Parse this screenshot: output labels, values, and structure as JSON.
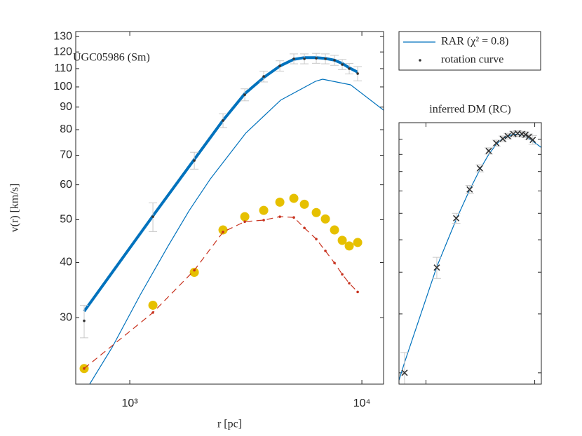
{
  "chart_data": [
    {
      "type": "line",
      "annotation": "UGC05986 (Sm)",
      "xlabel": "r   [pc]",
      "ylabel": "v(r)   [km/s]",
      "xscale": "log",
      "yscale": "log",
      "xlim": [
        585,
        12400
      ],
      "ylim": [
        21.2,
        133.5
      ],
      "xticks": [
        {
          "value": 1000,
          "label": "10³"
        },
        {
          "value": 10000,
          "label": "10⁴"
        }
      ],
      "yticks": [
        30,
        40,
        50,
        60,
        70,
        80,
        90,
        100,
        110,
        120,
        130
      ],
      "legend": "outside-right-top",
      "series": [
        {
          "name": "RAR (χ² = 0.8)",
          "color": "#0072BD",
          "line": "solid",
          "width": 4,
          "marker": "none",
          "x": [
            636,
            1258,
            1897,
            2522,
            3130,
            3776,
            4432,
            5092,
            5653,
            6361,
            6963,
            7622,
            8230,
            8821,
            9592
          ],
          "values": [
            31.0,
            51.0,
            68.5,
            84.0,
            96.5,
            105.0,
            111.5,
            115.5,
            116.5,
            116.5,
            116.0,
            115.0,
            113.0,
            110.5,
            108.0
          ]
        },
        {
          "color": "#0072BD",
          "line": "solid",
          "width": 1.2,
          "marker": "none",
          "x": [
            672,
            840,
            1110,
            1466,
            1806,
            2226,
            3153,
            4465,
            6325,
            6773,
            8945,
            12400
          ],
          "values": [
            21.2,
            25.7,
            33.8,
            43.7,
            52.5,
            61.9,
            78.5,
            93.3,
            103.0,
            104.1,
            101.1,
            88.6
          ]
        },
        {
          "color": "#E6C000",
          "line": "none",
          "marker": "circle",
          "x": [
            636,
            1258,
            1897,
            2522,
            3130,
            3776,
            4432,
            5092,
            5653,
            6361,
            6963,
            7622,
            8230,
            8821,
            9592
          ],
          "values": [
            23.0,
            32.0,
            38.0,
            47.4,
            50.8,
            52.5,
            54.8,
            55.9,
            54.2,
            51.9,
            50.2,
            47.4,
            44.9,
            43.6,
            44.4
          ]
        },
        {
          "color": "#C8321E",
          "line": "dashed",
          "width": 1.2,
          "marker": "smalldot",
          "x": [
            636,
            1258,
            1897,
            2522,
            3130,
            3776,
            4432,
            5092,
            5653,
            6361,
            6963,
            7622,
            8230,
            8821,
            9592
          ],
          "values": [
            23.0,
            30.8,
            38.4,
            46.9,
            49.5,
            49.9,
            50.8,
            50.6,
            47.9,
            45.2,
            42.5,
            39.9,
            37.6,
            35.9,
            34.3
          ]
        },
        {
          "name": "rotation curve",
          "color": "#333333",
          "line": "none",
          "marker": "dot",
          "x": [
            636,
            1258,
            1897,
            2522,
            3130,
            3776,
            4432,
            5092,
            5653,
            6361,
            6963,
            7622,
            8230,
            8821,
            9592
          ],
          "values": [
            29.5,
            50.8,
            68.1,
            83.9,
            96.0,
            105.6,
            111.6,
            115.8,
            115.8,
            116.1,
            115.8,
            114.9,
            112.4,
            110.0,
            107.2
          ],
          "errors": [
            2.5,
            3.8,
            3,
            3,
            3,
            3,
            3,
            3,
            3,
            3,
            3,
            3,
            3,
            3,
            4
          ]
        }
      ]
    },
    {
      "type": "line",
      "title": "inferred DM (RC)",
      "xscale": "log",
      "yscale": "log",
      "xlim": [
        565,
        11500
      ],
      "ylim": [
        18.5,
        112
      ],
      "xticks": [
        1000,
        10000
      ],
      "yticks": [
        20,
        30,
        40,
        50,
        60,
        70,
        80,
        90,
        100
      ],
      "ticklabels": false,
      "series": [
        {
          "color": "#0072BD",
          "line": "solid",
          "width": 1.2,
          "marker": "none",
          "x": [
            565,
            636,
            1258,
            1897,
            2522,
            3130,
            3776,
            4432,
            5092,
            6361,
            7622,
            8821,
            11500
          ],
          "values": [
            19.0,
            21.5,
            41.5,
            57.5,
            70.5,
            81.0,
            90.0,
            96.5,
            100.5,
            103.5,
            103.0,
            100.5,
            94.4
          ]
        },
        {
          "color": "#333333",
          "line": "none",
          "marker": "x",
          "x": [
            636,
            1258,
            1897,
            2522,
            3130,
            3776,
            4432,
            5092,
            5653,
            6361,
            6963,
            7622,
            8230,
            8821,
            9592
          ],
          "values": [
            20.0,
            41.3,
            58.0,
            70.7,
            81.8,
            92.2,
            97.3,
            100.2,
            102.1,
            103.6,
            104.0,
            103.6,
            103.1,
            101.6,
            99.5
          ],
          "errors": [
            3,
            3,
            2,
            2,
            2,
            2,
            2,
            2,
            2,
            2,
            2,
            2,
            2,
            2,
            3
          ]
        }
      ]
    }
  ]
}
